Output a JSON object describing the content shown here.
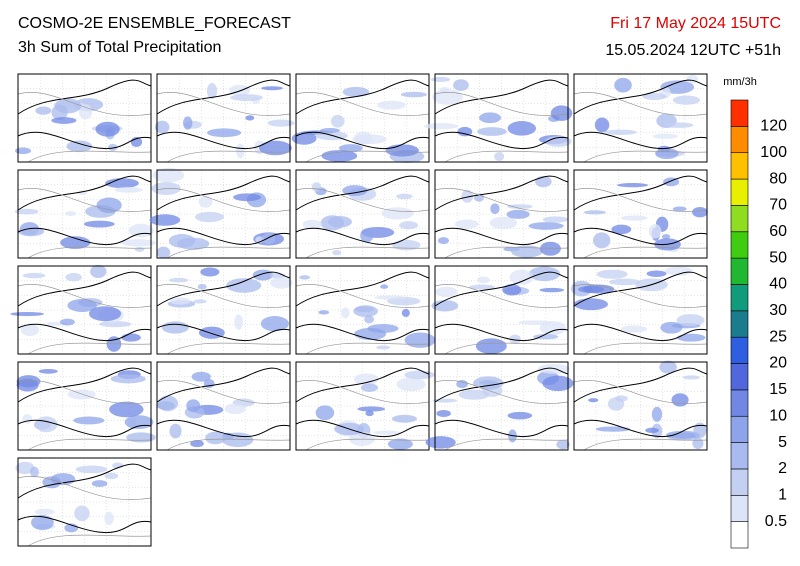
{
  "header": {
    "title": "COSMO-2E ENSEMBLE_FORECAST",
    "subtitle": "3h Sum of Total Precipitation",
    "valid_time": "Fri 17 May 2024 15UTC",
    "run_time": "15.05.2024 12UTC +51h"
  },
  "colorbar": {
    "unit": "mm/3h",
    "levels": [
      0.5,
      1,
      2,
      5,
      10,
      15,
      20,
      25,
      30,
      40,
      50,
      60,
      70,
      80,
      100,
      120
    ],
    "colors": [
      "#ffffff",
      "#dde4f8",
      "#c4d0f2",
      "#a9bbee",
      "#8ea4ea",
      "#7088e4",
      "#5068dc",
      "#2e5fe0",
      "#1a7c8c",
      "#109c7c",
      "#20b830",
      "#40cc10",
      "#90dc20",
      "#e8f000",
      "#ffc000",
      "#ff8c00",
      "#ff3000"
    ]
  }
}
